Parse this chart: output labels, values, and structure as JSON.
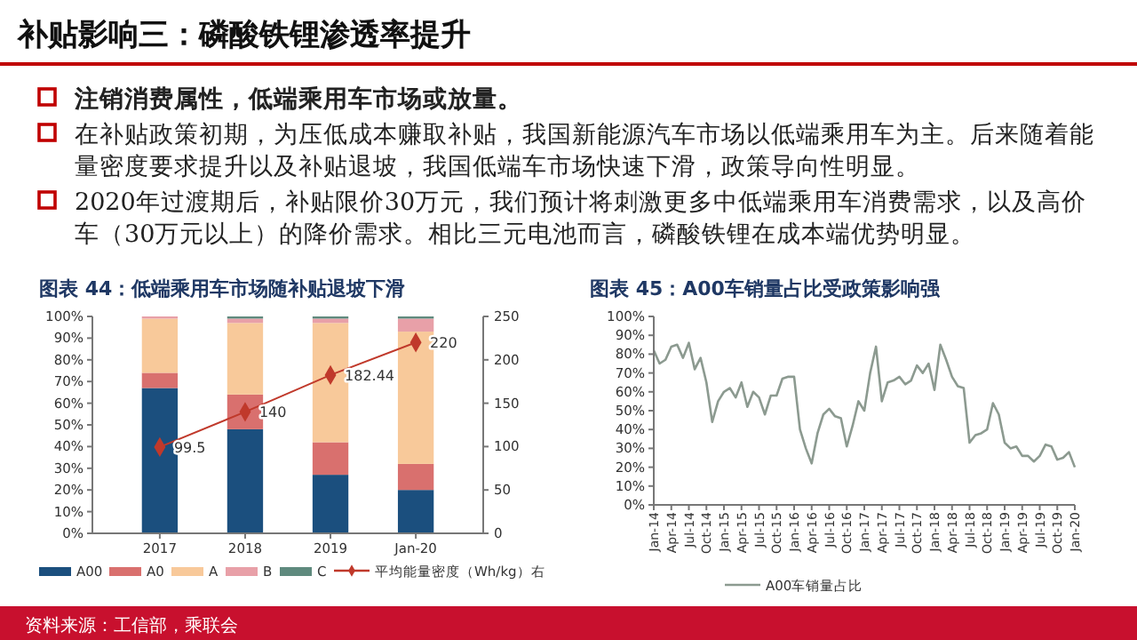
{
  "chart_data": [
    {
      "type": "other",
      "title": "补贴影响三：磷酸铁锂渗透率提升",
      "annotations": [
        "注销消费属性，低端乘用车市场或放量。",
        "在补贴政策初期，为压低成本赚取补贴，我国新能源汽车市场以低端乘用车为主。后来随着能量密度要求提升以及补贴退坡，我国低端车市场快速下滑，政策导向性明显。",
        "2020年过渡期后，补贴限价30万元，我们预计将刺激更多中低端乘用车消费需求，以及高价车（30万元以上）的降价需求。相比三元电池而言，磷酸铁锂在成本端优势明显。",
        "资料来源：工信部，乘联会"
      ]
    },
    {
      "type": "bar",
      "title": "图表 44：低端乘用车市场随补贴退坡下滑",
      "stacked": true,
      "legend": "bottom",
      "categories": [
        "2017",
        "2018",
        "2019",
        "Jan-20"
      ],
      "ylim": [
        0,
        100
      ],
      "yticks": [
        {
          "value": 0,
          "label": "0%"
        },
        {
          "value": 10,
          "label": "10%"
        },
        {
          "value": 20,
          "label": "20%"
        },
        {
          "value": 30,
          "label": "30%"
        },
        {
          "value": 40,
          "label": "40%"
        },
        {
          "value": 50,
          "label": "50%"
        },
        {
          "value": 60,
          "label": "60%"
        },
        {
          "value": 70,
          "label": "70%"
        },
        {
          "value": 80,
          "label": "80%"
        },
        {
          "value": 90,
          "label": "90%"
        },
        {
          "value": 100,
          "label": "100%"
        }
      ],
      "y2lim": [
        0,
        250
      ],
      "y2ticks": [
        0,
        50,
        100,
        150,
        200,
        250
      ],
      "series": [
        {
          "name": "A00",
          "color": "#1b4f7e",
          "values": [
            67,
            48,
            27,
            20
          ]
        },
        {
          "name": "A0",
          "color": "#d9706e",
          "values": [
            7,
            16,
            15,
            12
          ]
        },
        {
          "name": "A",
          "color": "#f8c99a",
          "values": [
            25,
            33,
            55,
            61
          ]
        },
        {
          "name": "B",
          "color": "#e8a0a8",
          "values": [
            1,
            2,
            2,
            6
          ]
        },
        {
          "name": "C",
          "color": "#5f8a7e",
          "values": [
            0,
            1,
            1,
            1
          ]
        },
        {
          "name": "平均能量密度（Wh/kg）右",
          "type": "line",
          "axis": "y2",
          "color": "#c0392b",
          "marker": "diamond",
          "values": [
            99.5,
            140,
            182.44,
            220
          ],
          "value_labels": [
            "99.5",
            "140",
            "182.44",
            "220"
          ]
        }
      ]
    },
    {
      "type": "line",
      "title": "图表 45：A00车销量占比受政策影响强",
      "legend": "bottom",
      "categories": [
        "Jan-14",
        null,
        null,
        "Apr-14",
        null,
        null,
        "Jul-14",
        null,
        null,
        "Oct-14",
        null,
        null,
        "Jan-15",
        null,
        null,
        "Apr-15",
        null,
        null,
        "Jul-15",
        null,
        null,
        "Oct-15",
        null,
        null,
        "Jan-16",
        null,
        null,
        "Apr-16",
        null,
        null,
        "Jul-16",
        null,
        null,
        "Oct-16",
        null,
        null,
        "Jan-17",
        null,
        null,
        "Apr-17",
        null,
        null,
        "Jul-17",
        null,
        null,
        "Oct-17",
        null,
        null,
        "Jan-18",
        null,
        null,
        "Apr-18",
        null,
        null,
        "Jul-18",
        null,
        null,
        "Oct-18",
        null,
        null,
        "Jan-19",
        null,
        null,
        "Apr-19",
        null,
        null,
        "Jul-19",
        null,
        null,
        "Oct-19",
        null,
        null,
        "Jan-20"
      ],
      "ylim": [
        0,
        100
      ],
      "yticks": [
        {
          "value": 0,
          "label": "0%"
        },
        {
          "value": 10,
          "label": "10%"
        },
        {
          "value": 20,
          "label": "20%"
        },
        {
          "value": 30,
          "label": "30%"
        },
        {
          "value": 40,
          "label": "40%"
        },
        {
          "value": 50,
          "label": "50%"
        },
        {
          "value": 60,
          "label": "60%"
        },
        {
          "value": 70,
          "label": "70%"
        },
        {
          "value": 80,
          "label": "80%"
        },
        {
          "value": 90,
          "label": "90%"
        },
        {
          "value": 100,
          "label": "100%"
        }
      ],
      "series": [
        {
          "name": "A00车销量占比",
          "color": "#8c9a90",
          "values": [
            82,
            75,
            77,
            84,
            85,
            78,
            86,
            72,
            78,
            65,
            44,
            55,
            60,
            62,
            57,
            65,
            52,
            60,
            57,
            48,
            58,
            58,
            67,
            68,
            68,
            40,
            30,
            22,
            38,
            48,
            51,
            47,
            46,
            31,
            42,
            55,
            50,
            70,
            84,
            55,
            65,
            66,
            68,
            64,
            66,
            74,
            70,
            75,
            61,
            85,
            77,
            68,
            63,
            62,
            33,
            37,
            38,
            40,
            54,
            48,
            33,
            30,
            31,
            26,
            26,
            23,
            26,
            32,
            31,
            24,
            25,
            28,
            20
          ]
        }
      ]
    }
  ]
}
